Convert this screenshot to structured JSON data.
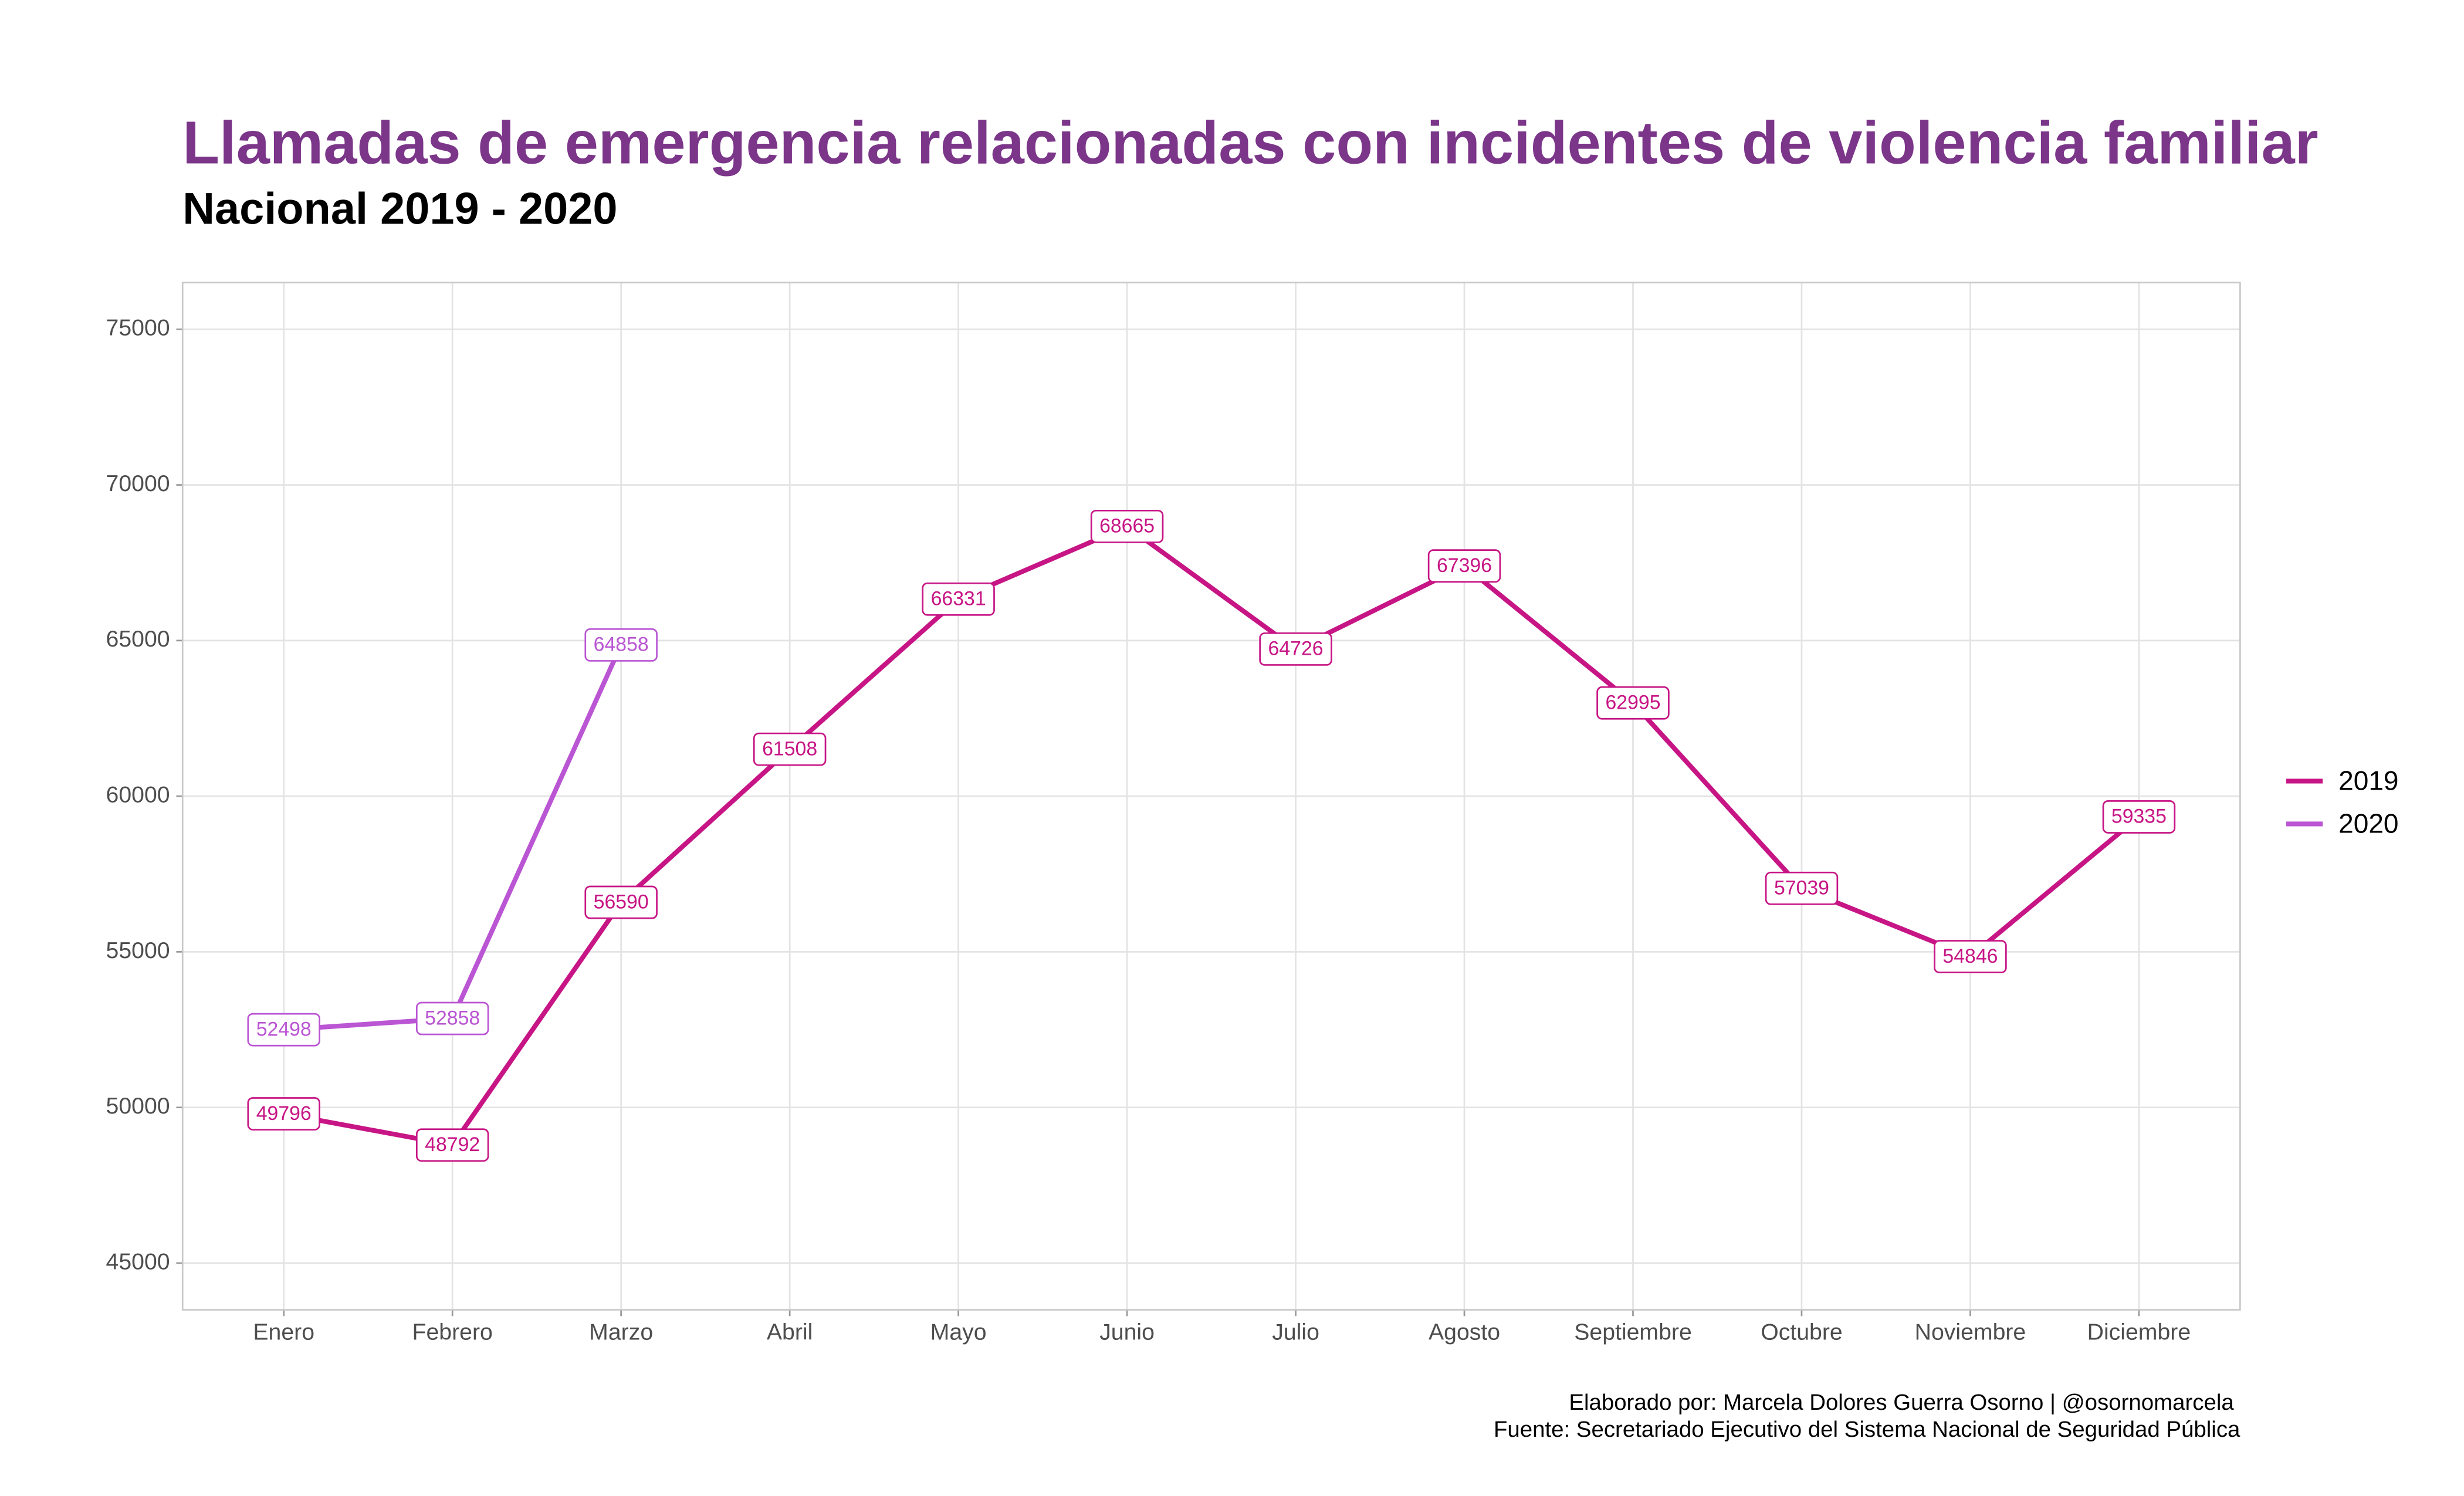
{
  "chart_data": {
    "type": "line",
    "title": "Llamadas de emergencia relacionadas con incidentes de violencia familiar",
    "subtitle": "Nacional 2019 - 2020",
    "caption": [
      "Elaborado por: Marcela Dolores Guerra Osorno | @osornomarcela ",
      "Fuente: Secretariado Ejecutivo del Sistema Nacional de Seguridad Pública"
    ],
    "categories": [
      "Enero",
      "Febrero",
      "Marzo",
      "Abril",
      "Mayo",
      "Junio",
      "Julio",
      "Agosto",
      "Septiembre",
      "Octubre",
      "Noviembre",
      "Diciembre"
    ],
    "series": [
      {
        "name": "2019",
        "color": "#c71585",
        "values": [
          49796,
          48792,
          56590,
          61508,
          66331,
          68665,
          64726,
          67396,
          62995,
          57039,
          54846,
          59335
        ]
      },
      {
        "name": "2020",
        "color": "#ba55d3",
        "values": [
          52498,
          52858,
          64858,
          null,
          null,
          null,
          null,
          null,
          null,
          null,
          null,
          null
        ]
      }
    ],
    "ylim": [
      43500,
      76500
    ],
    "yticks": [
      45000,
      50000,
      55000,
      60000,
      65000,
      70000,
      75000
    ],
    "grid": true,
    "legend": "right"
  }
}
